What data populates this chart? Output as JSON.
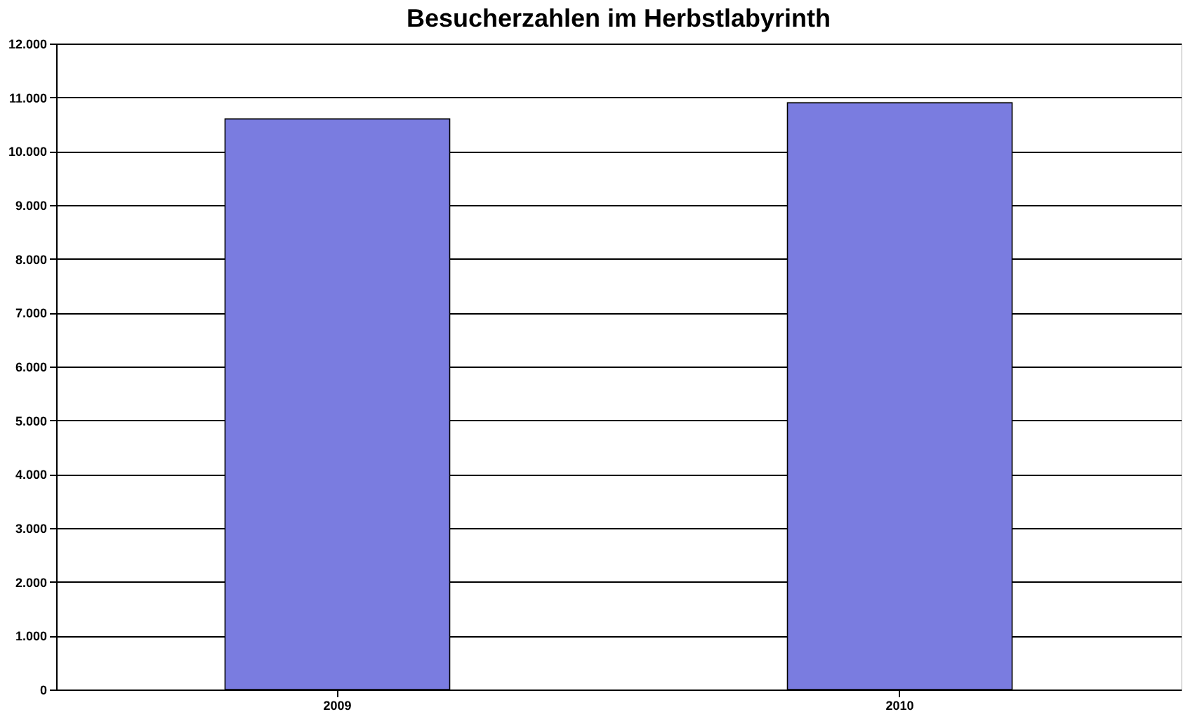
{
  "chart_data": {
    "type": "bar",
    "title": "Besucherzahlen im Herbstlabyrinth",
    "categories": [
      "2009",
      "2010"
    ],
    "values": [
      10600,
      10900
    ],
    "color": "#7a7ce0",
    "ylim": [
      0,
      12000
    ],
    "yticks": [
      0,
      {
        "value": 1000,
        "label": "1.000"
      },
      {
        "value": 2000,
        "label": "2.000"
      },
      {
        "value": 3000,
        "label": "3.000"
      },
      {
        "value": 4000,
        "label": "4.000"
      },
      {
        "value": 5000,
        "label": "5.000"
      },
      {
        "value": 6000,
        "label": "6.000"
      },
      {
        "value": 7000,
        "label": "7.000"
      },
      {
        "value": 8000,
        "label": "8.000"
      },
      {
        "value": 9000,
        "label": "9.000"
      },
      {
        "value": 10000,
        "label": "10.000"
      },
      {
        "value": 11000,
        "label": "11.000"
      },
      {
        "value": 12000,
        "label": "12.000"
      }
    ],
    "grid": "y"
  }
}
